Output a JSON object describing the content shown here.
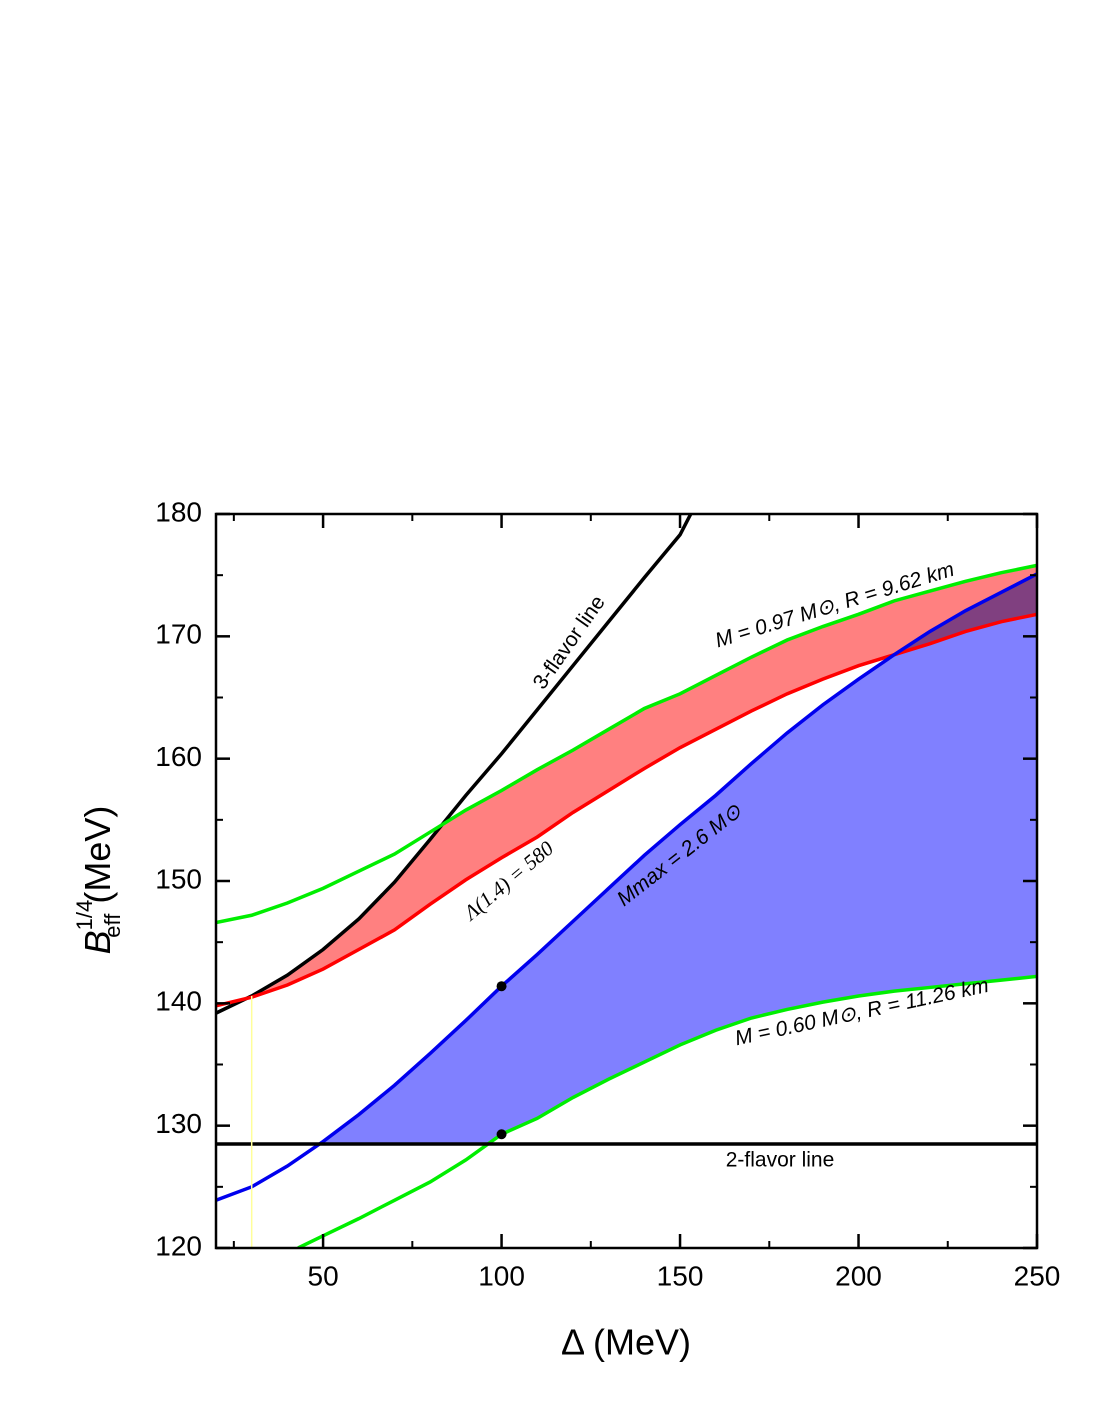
{
  "chart_data": {
    "type": "line",
    "xlabel": "Δ (MeV)",
    "ylabel": {
      "symbol": "B",
      "sup": "1/4",
      "sub": "eff",
      "unit": "(MeV)"
    },
    "xlim": [
      20,
      250
    ],
    "ylim": [
      120,
      180
    ],
    "xticks": [
      50,
      100,
      150,
      200,
      250
    ],
    "xminorticks": [
      25,
      75,
      125,
      175,
      225
    ],
    "yticks": [
      120,
      130,
      140,
      150,
      160,
      170,
      180
    ],
    "yminorticks": [
      125,
      135,
      145,
      155,
      165,
      175
    ],
    "series": [
      {
        "color": "#000000",
        "x": [
          20,
          30,
          40,
          50,
          60,
          70,
          80,
          90,
          100,
          110,
          120,
          130,
          140,
          150,
          153
        ],
        "values": [
          139.2,
          140.6,
          142.3,
          144.4,
          146.9,
          149.9,
          153.4,
          157,
          160.4,
          164,
          167.6,
          171.2,
          174.8,
          178.3,
          180
        ]
      },
      {
        "color": "#ff0000",
        "fill": "#ff8080",
        "x": [
          20,
          30,
          40,
          50,
          60,
          70,
          80,
          90,
          100,
          110,
          120,
          130,
          140,
          150,
          160,
          170,
          180,
          190,
          200,
          210,
          220,
          230,
          240,
          250
        ],
        "values": [
          139.8,
          140.5,
          141.5,
          142.8,
          144.4,
          146,
          148.1,
          150.1,
          151.9,
          153.6,
          155.6,
          157.4,
          159.2,
          160.9,
          162.4,
          163.9,
          165.3,
          166.5,
          167.6,
          168.5,
          169.4,
          170.4,
          171.2,
          171.8
        ]
      },
      {
        "color": "#00ee00",
        "x": [
          20,
          30,
          40,
          50,
          60,
          70,
          80,
          90,
          100,
          110,
          120,
          130,
          140,
          150,
          160,
          170,
          180,
          190,
          200,
          210,
          220,
          230,
          240,
          250
        ],
        "values": [
          146.6,
          147.2,
          148.2,
          149.4,
          150.8,
          152.2,
          154,
          155.8,
          157.4,
          159.1,
          160.7,
          162.4,
          164.1,
          165.3,
          166.8,
          168.3,
          169.7,
          170.8,
          171.8,
          172.9,
          173.7,
          174.5,
          175.2,
          175.8
        ]
      },
      {
        "color": "#0000ee",
        "fill": "#8080ff",
        "x": [
          20,
          30,
          40,
          50,
          60,
          70,
          80,
          90,
          100,
          110,
          120,
          130,
          140,
          150,
          160,
          170,
          180,
          190,
          200,
          210,
          220,
          230,
          240,
          250
        ],
        "values": [
          123.9,
          125,
          126.7,
          128.7,
          130.9,
          133.3,
          135.9,
          138.6,
          141.4,
          144,
          146.7,
          149.4,
          152.1,
          154.6,
          157,
          159.6,
          162.1,
          164.4,
          166.5,
          168.5,
          170.4,
          172.1,
          173.6,
          175.1
        ]
      },
      {
        "color": "#00ee00",
        "x": [
          43,
          50,
          60,
          70,
          80,
          90,
          100,
          110,
          120,
          130,
          140,
          150,
          160,
          170,
          180,
          190,
          200,
          210,
          220,
          230,
          240,
          250
        ],
        "values": [
          120,
          121,
          122.4,
          123.9,
          125.4,
          127.2,
          129.3,
          130.6,
          132.3,
          133.8,
          135.2,
          136.6,
          137.8,
          138.8,
          139.5,
          140.1,
          140.6,
          141,
          141.3,
          141.6,
          141.9,
          142.2
        ]
      },
      {
        "color": "#000000",
        "x": [
          20,
          250
        ],
        "values": [
          128.5,
          128.5
        ]
      },
      {
        "color": "#ffff99",
        "x": [
          30,
          30
        ],
        "values": [
          120,
          140.6
        ]
      }
    ],
    "points": {
      "color": "#000000",
      "x": [
        100,
        100
      ],
      "values": [
        141.4,
        129.3
      ]
    },
    "annotations": [
      "3-flavor line",
      "M = 0.97 M⊙, R = 9.62 km",
      "Λ(1.4) = 580",
      "Mmax = 2.6 M⊙",
      "M = 0.60 M⊙, R = 11.26 km",
      "2-flavor line"
    ]
  }
}
